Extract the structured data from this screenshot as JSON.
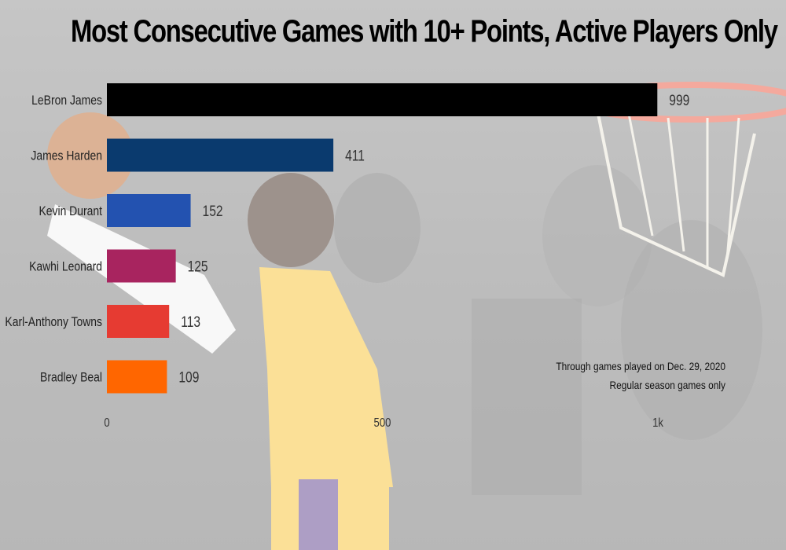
{
  "chart_data": {
    "type": "bar",
    "orientation": "horizontal",
    "title": "Most Consecutive Games with 10+ Points, Active Players Only",
    "categories": [
      "LeBron James",
      "James Harden",
      "Kevin Durant",
      "Kawhi Leonard",
      "Karl-Anthony Towns",
      "Bradley Beal"
    ],
    "values": [
      999,
      411,
      152,
      125,
      113,
      109
    ],
    "data_labels": [
      "999",
      "411",
      "152",
      "125",
      "113",
      "109"
    ],
    "colors": [
      "#000000",
      "#0a3a6e",
      "#2352b0",
      "#a8245f",
      "#e63b32",
      "#ff6600"
    ],
    "xlim": [
      0,
      1000
    ],
    "xticks": [
      0,
      500,
      1000
    ],
    "xtick_labels": [
      "0",
      "500",
      "1k"
    ],
    "xlabel": "",
    "ylabel": "",
    "grid": false,
    "notes": [
      "Through games played on Dec. 29, 2020",
      "Regular season games only"
    ]
  }
}
